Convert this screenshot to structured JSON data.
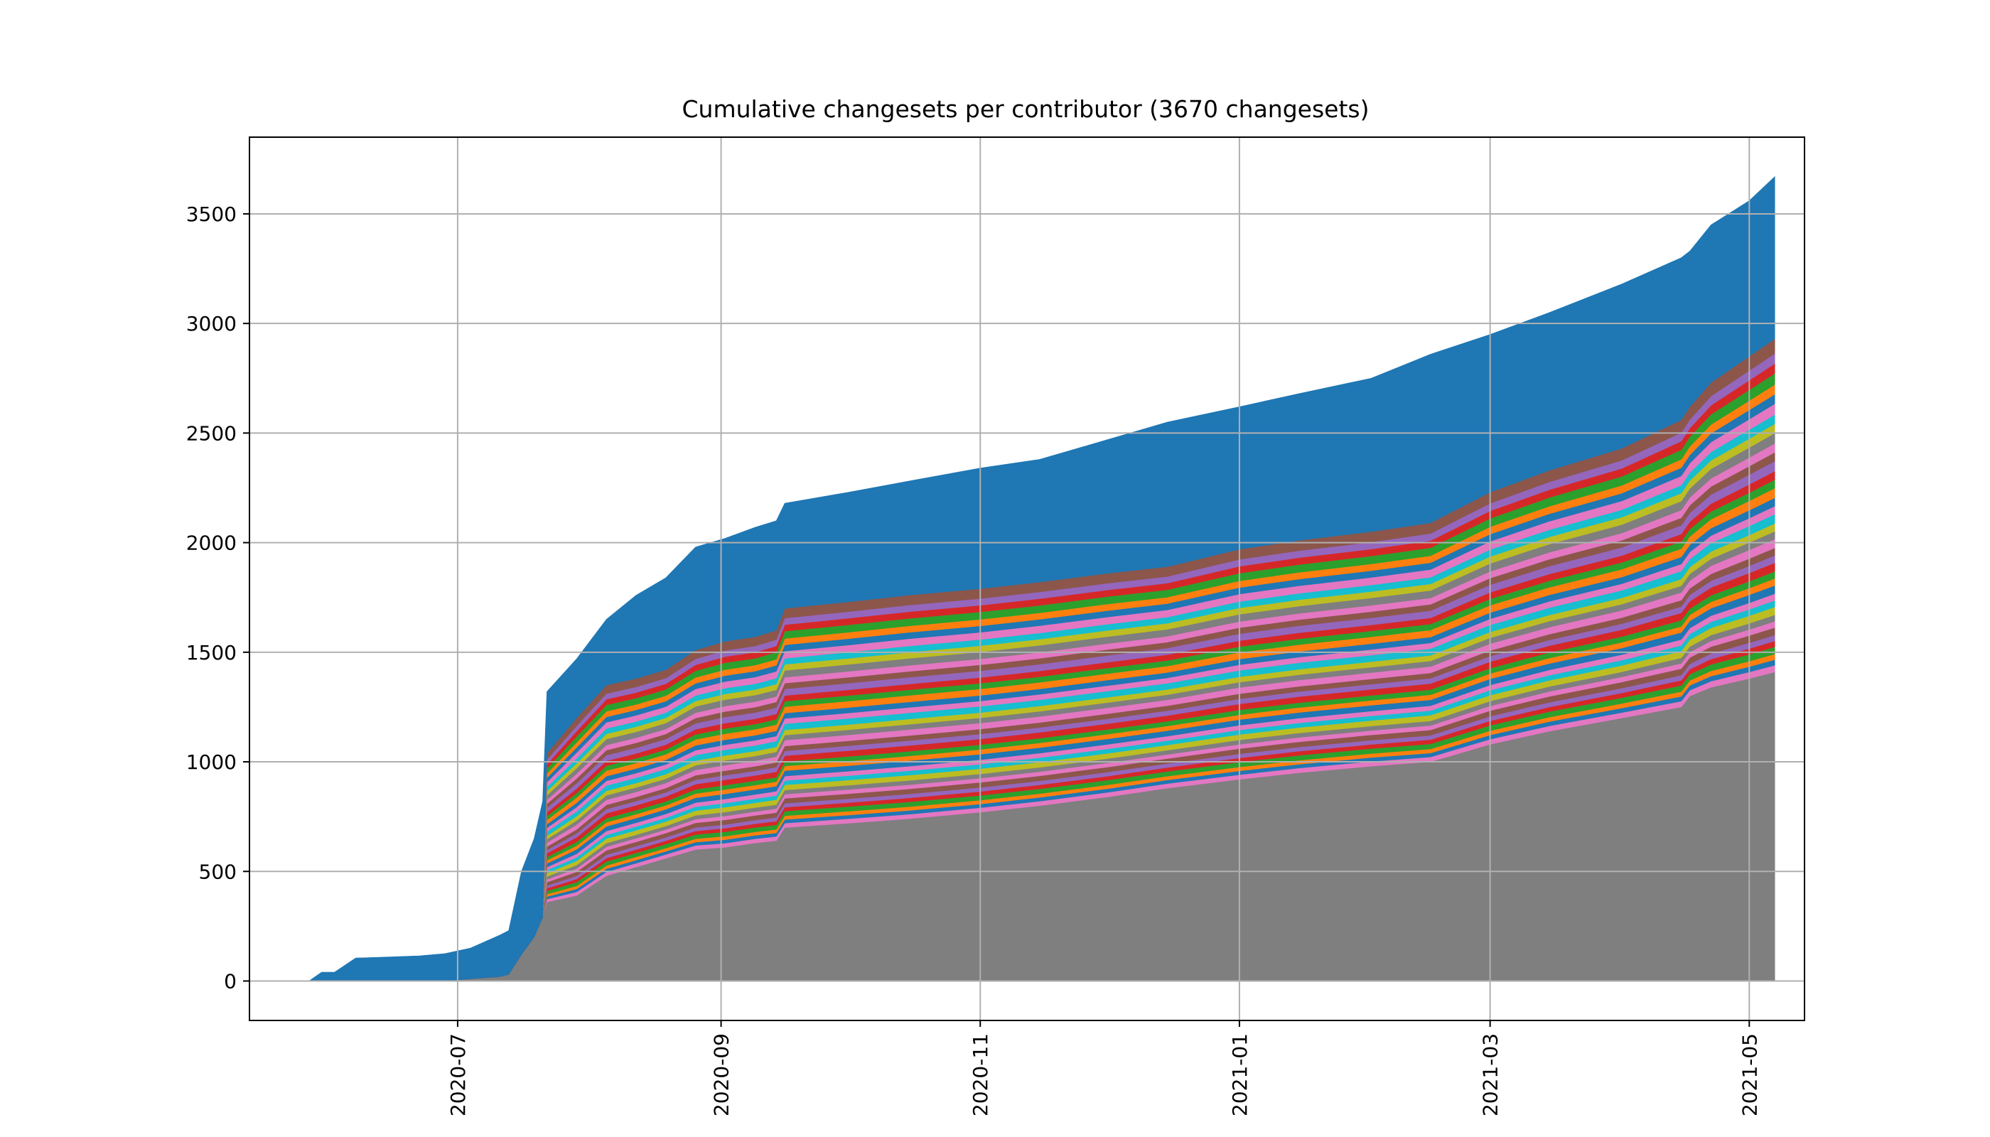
{
  "chart_data": {
    "type": "area",
    "stacked": true,
    "title": "Cumulative changesets per contributor (3670 changesets)",
    "xlabel": "",
    "ylabel": "",
    "xlim": [
      "2020-05-13",
      "2021-05-14"
    ],
    "ylim": [
      -180,
      3850
    ],
    "grid": true,
    "legend": "none",
    "x_ticks": [
      "2020-07",
      "2020-09",
      "2020-11",
      "2021-01",
      "2021-03",
      "2021-05"
    ],
    "x_tick_dates": [
      "2020-07-01",
      "2020-09-01",
      "2020-11-01",
      "2021-01-01",
      "2021-03-01",
      "2021-05-01"
    ],
    "y_ticks": [
      0,
      500,
      1000,
      1500,
      2000,
      2500,
      3000,
      3500
    ],
    "x": [
      "2020-05-27",
      "2020-05-30",
      "2020-06-02",
      "2020-06-07",
      "2020-06-15",
      "2020-06-22",
      "2020-06-28",
      "2020-07-04",
      "2020-07-11",
      "2020-07-13",
      "2020-07-16",
      "2020-07-19",
      "2020-07-21",
      "2020-07-22",
      "2020-07-29",
      "2020-08-05",
      "2020-08-12",
      "2020-08-19",
      "2020-08-26",
      "2020-09-02",
      "2020-09-09",
      "2020-09-14",
      "2020-09-16",
      "2020-10-01",
      "2020-10-15",
      "2020-11-01",
      "2020-11-15",
      "2020-12-01",
      "2020-12-15",
      "2021-01-01",
      "2021-01-15",
      "2021-02-01",
      "2021-02-15",
      "2021-03-01",
      "2021-03-15",
      "2021-04-01",
      "2021-04-15",
      "2021-04-17",
      "2021-04-22",
      "2021-05-01",
      "2021-05-07"
    ],
    "total": [
      0,
      40,
      40,
      105,
      110,
      115,
      125,
      150,
      210,
      230,
      500,
      650,
      820,
      1320,
      1470,
      1650,
      1760,
      1840,
      1980,
      2020,
      2070,
      2100,
      2180,
      2230,
      2280,
      2340,
      2380,
      2470,
      2550,
      2620,
      2680,
      2750,
      2860,
      2950,
      3050,
      3180,
      3300,
      3330,
      3450,
      3560,
      3670
    ],
    "base_series": {
      "color": "#7f7f7f",
      "values": [
        0,
        0,
        0,
        0,
        0,
        0,
        0,
        10,
        20,
        30,
        120,
        200,
        290,
        360,
        390,
        480,
        520,
        560,
        600,
        610,
        630,
        640,
        700,
        720,
        740,
        770,
        800,
        840,
        880,
        920,
        950,
        980,
        1000,
        1080,
        1140,
        1200,
        1250,
        1300,
        1340,
        1380,
        1410
      ]
    },
    "top_series": {
      "color": "#1f77b4",
      "values": [
        0,
        40,
        40,
        105,
        110,
        115,
        125,
        140,
        190,
        200,
        380,
        450,
        530,
        280,
        270,
        300,
        380,
        420,
        470,
        470,
        500,
        500,
        480,
        500,
        520,
        550,
        560,
        610,
        660,
        650,
        670,
        700,
        770,
        720,
        720,
        750,
        740,
        710,
        720,
        710,
        740
      ]
    },
    "series_colors": [
      "#e377c2",
      "#1f77b4",
      "#ff7f0e",
      "#2ca02c",
      "#d62728",
      "#9467bd",
      "#8c564b",
      "#e377c2",
      "#7f7f7f",
      "#bcbd22",
      "#17becf"
    ],
    "series_count": 40
  }
}
